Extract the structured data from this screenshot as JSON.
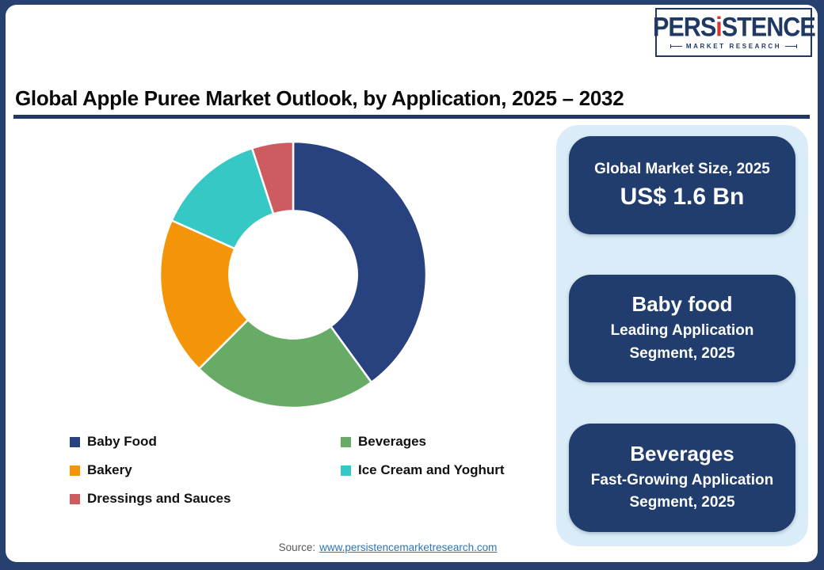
{
  "logo": {
    "brand_pre": "PERS",
    "brand_i": "i",
    "brand_post": "STENCE",
    "tagline": "MARKET RESEARCH"
  },
  "header": {
    "title": "Global Apple Puree Market Outlook, by Application, 2025 – 2032"
  },
  "chart_data": {
    "type": "pie",
    "variant": "donut",
    "title": "Global Apple Puree Market Outlook, by Application, 2025 – 2032",
    "categories": [
      "Baby Food",
      "Beverages",
      "Bakery",
      "Ice Cream and Yoghurt",
      "Dressings and Sauces"
    ],
    "values": [
      40,
      22.5,
      19.2,
      13.3,
      5
    ],
    "unit": "percent-estimated",
    "colors": [
      "#28427f",
      "#68ab66",
      "#f49408",
      "#35c8c5",
      "#cd5c61"
    ],
    "start_angle_deg": 0,
    "clockwise": true,
    "inner_radius_ratio": 0.48,
    "legend_position": "bottom-left"
  },
  "cards": [
    {
      "title": "Global Market Size, 2025",
      "value": "US$ 1.6 Bn"
    },
    {
      "title": "Baby food",
      "subtitle": "Leading Application Segment, 2025"
    },
    {
      "title": "Beverages",
      "subtitle": "Fast-Growing Application Segment, 2025"
    }
  ],
  "footer": {
    "source_label": "Source:",
    "source_link": "www.persistencemarketresearch.com"
  },
  "colors": {
    "frame": "#26406f",
    "rule": "#1f3864",
    "panel_bg": "#d9ecf7",
    "card_bg": "#203d6e",
    "brand_navy": "#1f3864",
    "brand_red": "#d9342b",
    "link": "#2e75b6"
  }
}
